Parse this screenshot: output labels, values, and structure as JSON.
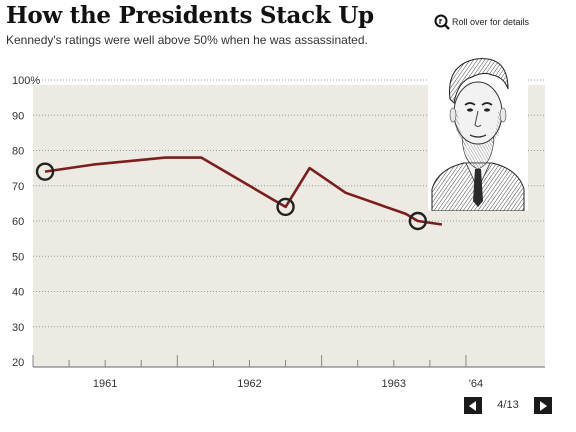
{
  "header": {
    "title": "How the Presidents Stack Up",
    "subtitle": "Kennedy's ratings were well above 50% when he was assassinated.",
    "rollover_label": "Roll over for details"
  },
  "portrait_icon": "jfk-portrait-engraving",
  "colors": {
    "line": "#7a1e1e",
    "plot_background": "#ede9e3",
    "grid": "#9a9a9a",
    "marker": "#222222"
  },
  "chart_data": {
    "type": "line",
    "title": "",
    "xlabel": "",
    "ylabel": "",
    "x_ticks": [
      "1961",
      "1962",
      "1963",
      "'64"
    ],
    "y_ticks": [
      "100%",
      "90",
      "80",
      "70",
      "60",
      "50",
      "40",
      "30",
      "20"
    ],
    "ylim": [
      20,
      100
    ],
    "grid": "horizontal dotted",
    "series": [
      {
        "points": [
          {
            "date": "1961-02",
            "value": 74
          },
          {
            "date": "1961-06",
            "value": 76
          },
          {
            "date": "1961-12",
            "value": 78
          },
          {
            "date": "1962-03",
            "value": 78
          },
          {
            "date": "1962-09",
            "value": 66
          },
          {
            "date": "1962-10",
            "value": 64
          },
          {
            "date": "1962-12",
            "value": 75
          },
          {
            "date": "1963-03",
            "value": 68
          },
          {
            "date": "1963-08",
            "value": 62
          },
          {
            "date": "1963-09",
            "value": 60
          },
          {
            "date": "1963-11",
            "value": 59
          }
        ]
      }
    ],
    "highlighted_points": [
      {
        "date": "1961-02",
        "value": 74
      },
      {
        "date": "1962-10",
        "value": 64
      },
      {
        "date": "1963-09",
        "value": 60
      }
    ]
  },
  "navigation": {
    "page_indicator": "4/13"
  }
}
